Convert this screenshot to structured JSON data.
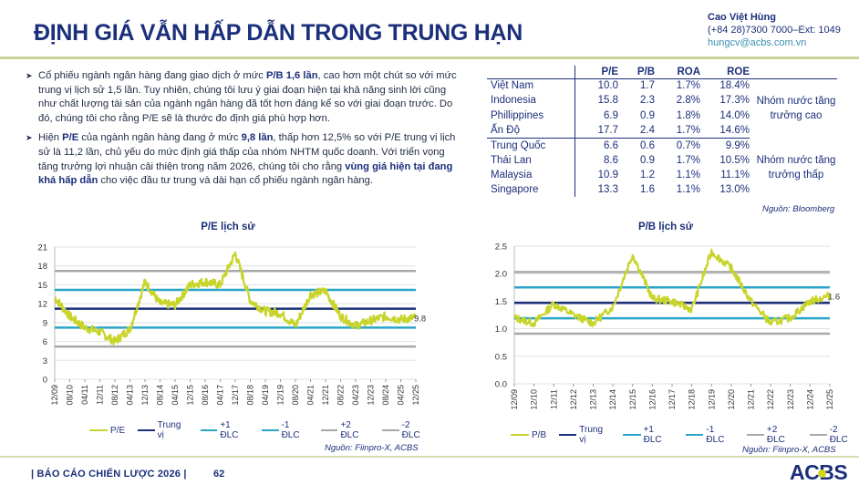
{
  "header": {
    "title": "ĐỊNH GIÁ VẪN HẤP DẪN TRONG TRUNG HẠN",
    "contact": {
      "name": "Cao Việt Hùng",
      "phone": "(+84 28)7300 7000–Ext: 1049",
      "email": "hungcv@acbs.com.vn"
    }
  },
  "bullets": [
    {
      "parts": [
        {
          "t": "Cổ phiếu ngành ngân hàng đang giao dịch ở mức ",
          "b": false
        },
        {
          "t": "P/B 1,6 lần",
          "b": true
        },
        {
          "t": ", cao hơn một chút so với mức trung vị lịch sử 1,5 lần. Tuy nhiên, chúng tôi lưu ý giai đoạn hiện tại khả năng sinh lời cũng như chất lượng tài sản của ngành ngân hàng đã tốt hơn đáng kể so với giai đoạn trước. Do đó, chúng tôi cho rằng P/E sẽ là thước đo định giá phù hợp hơn.",
          "b": false
        }
      ]
    },
    {
      "parts": [
        {
          "t": "Hiện ",
          "b": false
        },
        {
          "t": "P/E",
          "b": true
        },
        {
          "t": " của ngành ngân hàng đang ở mức ",
          "b": false
        },
        {
          "t": "9,8 lần",
          "b": true
        },
        {
          "t": ", thấp hơn 12,5% so với P/E trung vị lịch sử là 11,2 lần, chủ yếu do mức định giá thấp của nhóm NHTM quốc doanh. Với triển vọng tăng trưởng lợi nhuận cải thiện trong năm 2026, chúng tôi cho rằng ",
          "b": false
        },
        {
          "t": "vùng giá hiện tại đang khá hấp dẫn",
          "b": true
        },
        {
          "t": " cho việc đầu tư trung và dài hạn cổ phiếu ngành ngân hàng.",
          "b": false
        }
      ]
    }
  ],
  "comparison_table": {
    "headers": [
      "",
      "P/E",
      "P/B",
      "ROA",
      "ROE",
      ""
    ],
    "groups": [
      {
        "label": "Nhóm nước tăng trưởng cao",
        "rows": [
          [
            "Việt Nam",
            "10.0",
            "1.7",
            "1.7%",
            "18.4%"
          ],
          [
            "Indonesia",
            "15.8",
            "2.3",
            "2.8%",
            "17.3%"
          ],
          [
            "Phillippines",
            "6.9",
            "0.9",
            "1.8%",
            "14.0%"
          ],
          [
            "Ấn Độ",
            "17.7",
            "2.4",
            "1.7%",
            "14.6%"
          ]
        ]
      },
      {
        "label": "Nhóm nước tăng trưởng thấp",
        "rows": [
          [
            "Trung Quốc",
            "6.6",
            "0.6",
            "0.7%",
            "9.9%"
          ],
          [
            "Thái Lan",
            "8.6",
            "0.9",
            "1.7%",
            "10.5%"
          ],
          [
            "Malaysia",
            "10.9",
            "1.2",
            "1.1%",
            "11.1%"
          ],
          [
            "Singapore",
            "13.3",
            "1.6",
            "1.1%",
            "13.0%"
          ]
        ]
      }
    ],
    "source": "Nguồn: Bloomberg"
  },
  "colors": {
    "primary": "#1b2f7a",
    "series": "#c8d42a",
    "median": "#1b2f7a",
    "sd1": "#2aa5c8",
    "sd2": "#a8a8a8",
    "rule": "#c9d39a"
  },
  "chart_data": [
    {
      "type": "line",
      "title": "P/E lịch sử",
      "xlabel": "",
      "ylabel": "",
      "ylim": [
        0,
        21
      ],
      "yticks": [
        "0",
        "3",
        "6",
        "9",
        "12",
        "15",
        "18",
        "21"
      ],
      "xticks": [
        "12/09",
        "08/10",
        "04/11",
        "12/11",
        "08/12",
        "04/13",
        "12/13",
        "08/14",
        "04/15",
        "12/15",
        "08/16",
        "04/17",
        "12/17",
        "08/18",
        "04/19",
        "12/19",
        "08/20",
        "04/21",
        "12/21",
        "08/22",
        "04/23",
        "12/23",
        "08/24",
        "04/25",
        "12/25"
      ],
      "grid": true,
      "legend_position": "bottom",
      "last_value_label": "9.8",
      "reference_lines": {
        "median": 11.2,
        "plus_1sd": 14.2,
        "minus_1sd": 8.2,
        "plus_2sd": 17.2,
        "minus_2sd": 5.2
      },
      "series": [
        {
          "name": "P/E",
          "x": [
            "12/09",
            "08/10",
            "04/11",
            "12/11",
            "08/12",
            "04/13",
            "12/13",
            "08/14",
            "04/15",
            "12/15",
            "08/16",
            "04/17",
            "12/17",
            "08/18",
            "04/19",
            "12/19",
            "08/20",
            "04/21",
            "12/21",
            "08/22",
            "04/23",
            "12/23",
            "08/24",
            "04/25",
            "12/25"
          ],
          "values": [
            13.0,
            10.0,
            8.2,
            7.5,
            6.0,
            8.0,
            15.5,
            12.0,
            11.8,
            15.0,
            15.5,
            15.0,
            20.0,
            12.5,
            10.8,
            10.5,
            8.5,
            13.5,
            14.0,
            10.0,
            8.5,
            9.3,
            10.0,
            9.5,
            9.8
          ]
        },
        {
          "name": "Trung vị",
          "values": [
            11.2
          ]
        },
        {
          "name": "+1 ĐLC",
          "values": [
            14.2
          ]
        },
        {
          "name": "-1 ĐLC",
          "values": [
            8.2
          ]
        },
        {
          "name": "+2 ĐLC",
          "values": [
            17.2
          ]
        },
        {
          "name": "-2 ĐLC",
          "values": [
            5.2
          ]
        }
      ],
      "legend": [
        "P/E",
        "Trung vị",
        "+1 ĐLC",
        "-1 ĐLC",
        "+2 ĐLC",
        "-2 ĐLC"
      ],
      "source": "Nguồn: Fiinpro-X, ACBS"
    },
    {
      "type": "line",
      "title": "P/B lịch sử",
      "xlabel": "",
      "ylabel": "",
      "ylim": [
        0,
        2.5
      ],
      "yticks": [
        "0.0",
        "0.5",
        "1.0",
        "1.5",
        "2.0",
        "2.5"
      ],
      "xticks": [
        "12/09",
        "12/10",
        "12/11",
        "12/12",
        "12/13",
        "12/14",
        "12/15",
        "12/16",
        "12/17",
        "12/18",
        "12/19",
        "12/20",
        "12/21",
        "12/22",
        "12/23",
        "12/24",
        "12/25"
      ],
      "grid": true,
      "legend_position": "bottom",
      "last_value_label": "1.6",
      "reference_lines": {
        "median": 1.47,
        "plus_1sd": 1.75,
        "minus_1sd": 1.19,
        "plus_2sd": 2.03,
        "minus_2sd": 0.91
      },
      "series": [
        {
          "name": "P/B",
          "x": [
            "12/09",
            "12/10",
            "12/11",
            "12/12",
            "12/13",
            "12/14",
            "12/15",
            "12/16",
            "12/17",
            "12/18",
            "12/19",
            "12/20",
            "12/21",
            "12/22",
            "12/23",
            "12/24",
            "12/25"
          ],
          "values": [
            1.2,
            1.1,
            1.45,
            1.25,
            1.1,
            1.4,
            2.35,
            1.55,
            1.5,
            1.35,
            2.4,
            2.1,
            1.5,
            1.1,
            1.2,
            1.5,
            1.6
          ]
        },
        {
          "name": "Trung vị",
          "values": [
            1.47
          ]
        },
        {
          "name": "+1 ĐLC",
          "values": [
            1.75
          ]
        },
        {
          "name": "-1 ĐLC",
          "values": [
            1.19
          ]
        },
        {
          "name": "+2 ĐLC",
          "values": [
            2.03
          ]
        },
        {
          "name": "-2 ĐLC",
          "values": [
            0.91
          ]
        }
      ],
      "legend": [
        "P/B",
        "Trung vị",
        "+1 ĐLC",
        "-1 ĐLC",
        "+2 ĐLC",
        "-2 ĐLC"
      ],
      "source": "Nguồn: Fiinpro-X, ACBS"
    }
  ],
  "footer": {
    "report": "| BÁO CÁO CHIẾN LƯỢC 2026 |",
    "page": "62",
    "logo": "ACBS"
  }
}
